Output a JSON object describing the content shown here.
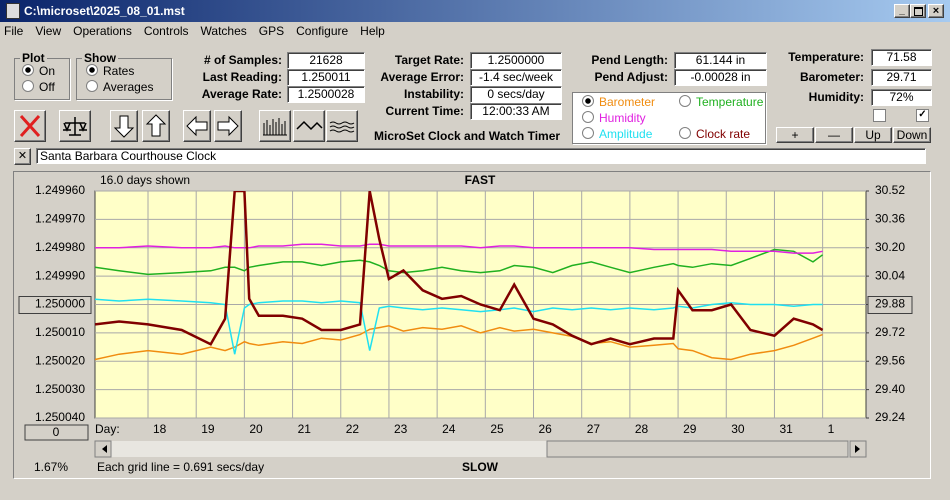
{
  "window": {
    "title": "C:\\microset\\2025_08_01.mst"
  },
  "menu": [
    "File",
    "View",
    "Operations",
    "Controls",
    "Watches",
    "GPS",
    "Configure",
    "Help"
  ],
  "plot_group": {
    "title": "Plot",
    "options": [
      "On",
      "Off"
    ]
  },
  "show_group": {
    "title": "Show",
    "options": [
      "Rates",
      "Averages"
    ]
  },
  "fields_left": [
    [
      "# of Samples:",
      "21628"
    ],
    [
      "Last Reading:",
      "1.250011"
    ],
    [
      "Average Rate:",
      "1.2500028"
    ]
  ],
  "fields_mid": [
    [
      "Target Rate:",
      "1.2500000"
    ],
    [
      "Average Error:",
      "-1.4 sec/week"
    ],
    [
      "Instability:",
      "0 secs/day"
    ],
    [
      "Current Time:",
      "12:00:33 AM"
    ]
  ],
  "fields_pend": [
    [
      "Pend Length:",
      "61.144 in"
    ],
    [
      "Pend Adjust:",
      "-0.00028 in"
    ]
  ],
  "fields_env": [
    [
      "Temperature:",
      "71.58"
    ],
    [
      "Barometer:",
      "29.71"
    ],
    [
      "Humidity:",
      "72%"
    ]
  ],
  "env_buttons": [
    "+",
    "—",
    "Up",
    "Down"
  ],
  "panel_title": "MicroSet Clock and Watch Timer",
  "clock_name": "Santa Barbara Courthouse Clock",
  "chart_controls": {
    "zero_button": "0",
    "percent": "1.67%"
  },
  "chart_data": {
    "type": "line",
    "top_label": "FAST",
    "bottom_label": "SLOW",
    "days_shown": "16.0 days shown",
    "x_label": "Day:",
    "note": "Each grid line = 0.691 secs/day",
    "selected_series": 0,
    "grid": true,
    "xlim": [
      16.9,
      32.9
    ],
    "xticks": [
      18,
      19,
      20,
      21,
      22,
      23,
      24,
      25,
      26,
      27,
      28,
      29,
      30,
      31,
      {
        "value": 32,
        "label": "1"
      }
    ],
    "ylim": [
      1.24996,
      1.25004
    ],
    "y_reversed": true,
    "yticks": [
      {
        "value": 1.24996,
        "label": "1.249960"
      },
      {
        "value": 1.24997,
        "label": "1.249970"
      },
      {
        "value": 1.24998,
        "label": "1.249980"
      },
      {
        "value": 1.24999,
        "label": "1.249990"
      },
      {
        "value": 1.25,
        "label": "1.250000"
      },
      {
        "value": 1.25001,
        "label": "1.250010"
      },
      {
        "value": 1.25002,
        "label": "1.250020"
      },
      {
        "value": 1.25003,
        "label": "1.250030"
      },
      {
        "value": 1.25004,
        "label": "1.250040"
      }
    ],
    "y2lim": [
      29.24,
      30.52
    ],
    "y2ticks": [
      30.52,
      30.36,
      {
        "value": 30.2,
        "label": "30.20"
      },
      30.04,
      29.88,
      29.72,
      29.56,
      {
        "value": 29.4,
        "label": "29.40"
      },
      29.24
    ],
    "x": [
      16.9,
      17.4,
      18.0,
      18.7,
      19.3,
      19.6,
      19.8,
      20.0,
      20.1,
      20.3,
      20.8,
      21.2,
      21.6,
      22.0,
      22.4,
      22.6,
      22.8,
      23.0,
      23.3,
      23.7,
      24.1,
      24.5,
      24.9,
      25.3,
      25.6,
      26.0,
      26.4,
      26.8,
      27.2,
      27.6,
      28.0,
      28.5,
      28.9,
      29.0,
      29.3,
      29.7,
      30.1,
      30.5,
      31.0,
      31.4,
      31.8,
      32.0
    ],
    "series": [
      {
        "name": "Barometer",
        "color": "#f08c10",
        "axis": "y2",
        "values": [
          29.57,
          29.6,
          29.62,
          29.6,
          29.64,
          29.62,
          29.64,
          29.67,
          29.66,
          29.65,
          29.67,
          29.66,
          29.69,
          29.68,
          29.71,
          29.74,
          29.75,
          29.76,
          29.73,
          29.75,
          29.74,
          29.76,
          29.72,
          29.75,
          29.73,
          29.74,
          29.72,
          29.7,
          29.66,
          29.67,
          29.64,
          29.65,
          29.66,
          29.63,
          29.62,
          29.58,
          29.57,
          29.6,
          29.62,
          29.65,
          29.69,
          29.71
        ]
      },
      {
        "name": "Temperature",
        "color": "#20b020",
        "axis": "y2",
        "values": [
          30.09,
          30.07,
          30.05,
          30.06,
          30.07,
          30.09,
          30.09,
          30.07,
          30.09,
          30.1,
          30.12,
          30.12,
          30.1,
          30.12,
          30.13,
          30.12,
          30.1,
          30.07,
          30.06,
          30.07,
          30.09,
          30.07,
          30.06,
          30.07,
          30.1,
          30.09,
          30.06,
          30.1,
          30.12,
          30.09,
          30.06,
          30.09,
          30.11,
          30.1,
          30.09,
          30.11,
          30.1,
          30.14,
          30.19,
          30.18,
          30.12,
          30.16
        ]
      },
      {
        "name": "Humidity",
        "color": "#e020e0",
        "axis": "y2",
        "values": [
          30.2,
          30.2,
          30.21,
          30.2,
          30.2,
          30.21,
          30.2,
          30.2,
          30.2,
          30.21,
          30.21,
          30.22,
          30.22,
          30.21,
          30.21,
          30.22,
          30.22,
          30.21,
          30.21,
          30.21,
          30.21,
          30.21,
          30.2,
          30.21,
          30.21,
          30.2,
          30.2,
          30.2,
          30.2,
          30.2,
          30.2,
          30.19,
          30.19,
          30.19,
          30.19,
          30.19,
          30.18,
          30.18,
          30.18,
          30.17,
          30.17,
          30.18
        ]
      },
      {
        "name": "Amplitude",
        "color": "#20e0f0",
        "axis": "y2",
        "values": [
          29.91,
          29.9,
          29.91,
          29.9,
          29.89,
          29.88,
          29.6,
          29.86,
          29.88,
          29.89,
          29.9,
          29.9,
          29.89,
          29.9,
          29.89,
          29.62,
          29.86,
          29.87,
          29.86,
          29.85,
          29.86,
          29.85,
          29.84,
          29.85,
          29.86,
          29.84,
          29.86,
          29.85,
          29.86,
          29.85,
          29.86,
          29.85,
          29.86,
          29.87,
          29.86,
          29.88,
          29.89,
          29.88,
          29.88,
          29.87,
          29.88,
          29.88
        ]
      },
      {
        "name": "Clock rate",
        "color": "#800000",
        "axis": "y",
        "values": [
          1.250007,
          1.250006,
          1.250007,
          1.250009,
          1.250014,
          1.250005,
          1.24996,
          1.24996,
          1.249998,
          1.250004,
          1.250004,
          1.250005,
          1.250009,
          1.250009,
          1.250007,
          1.24996,
          1.249977,
          1.249991,
          1.249988,
          1.249995,
          1.249998,
          1.249997,
          1.25,
          1.250002,
          1.249993,
          1.250005,
          1.250007,
          1.250011,
          1.250014,
          1.250012,
          1.250014,
          1.250012,
          1.250012,
          1.249995,
          1.250002,
          1.250002,
          1.25,
          1.250009,
          1.250011,
          1.250005,
          1.250007,
          1.250009
        ]
      }
    ]
  }
}
